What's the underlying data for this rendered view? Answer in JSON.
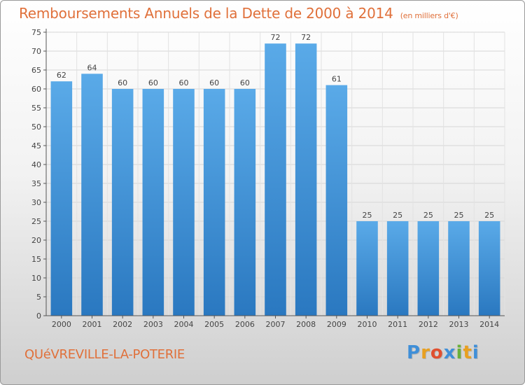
{
  "title": "Remboursements Annuels de la Dette de 2000 à 2014",
  "subtitle": "(en milliers d'€)",
  "commune": "QUéVREVILLE-LA-POTERIE",
  "logo": {
    "letters": [
      "P",
      "r",
      "o",
      "x",
      "i",
      "t",
      "i"
    ],
    "colors": [
      "#3f8fd8",
      "#e8a020",
      "#e05030",
      "#3f8fd8",
      "#6bb03a",
      "#e8a020",
      "#3f8fd8"
    ]
  },
  "chart_data": {
    "type": "bar",
    "categories": [
      "2000",
      "2001",
      "2002",
      "2003",
      "2004",
      "2005",
      "2006",
      "2007",
      "2008",
      "2009",
      "2010",
      "2011",
      "2012",
      "2013",
      "2014"
    ],
    "values": [
      62,
      64,
      60,
      60,
      60,
      60,
      60,
      72,
      72,
      61,
      25,
      25,
      25,
      25,
      25
    ],
    "title": "Remboursements Annuels de la Dette de 2000 à 2014",
    "subtitle": "(en milliers d'€)",
    "xlabel": "",
    "ylabel": "",
    "ylim": [
      0,
      75
    ],
    "yticks": [
      0,
      5,
      10,
      15,
      20,
      25,
      30,
      35,
      40,
      45,
      50,
      55,
      60,
      65,
      70,
      75
    ],
    "grid": true,
    "bar_color_top": "#5aaae8",
    "bar_color_bottom": "#2a78c0",
    "label_color": "#444444"
  }
}
